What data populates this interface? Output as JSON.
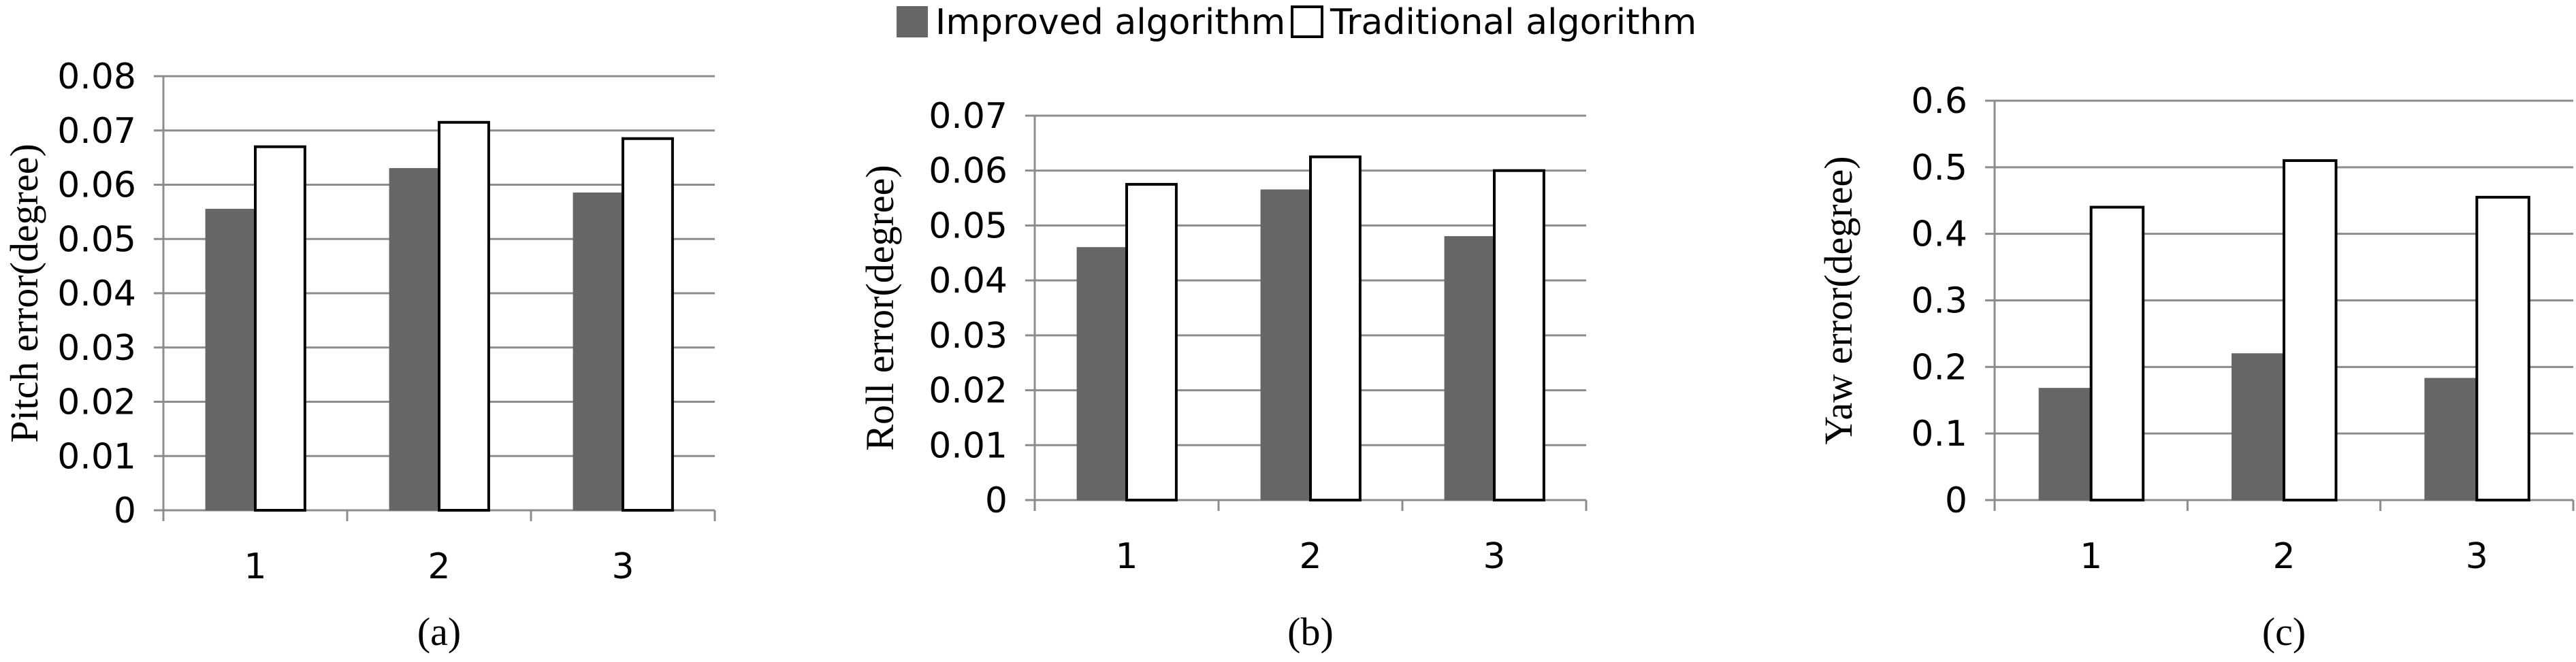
{
  "legend": {
    "series": [
      {
        "name": "Improved algorithm",
        "color": "#666666"
      },
      {
        "name": "Traditional algorithm",
        "color": "#ffffff"
      }
    ]
  },
  "chart_data": [
    {
      "type": "bar",
      "panel_label": "(a)",
      "ylabel": "Pitch error(degree)",
      "categories": [
        "1",
        "2",
        "3"
      ],
      "ylim": [
        0,
        0.08
      ],
      "yticks": [
        "0",
        "0.01",
        "0.02",
        "0.03",
        "0.04",
        "0.05",
        "0.06",
        "0.07",
        "0.08"
      ],
      "grid": true,
      "series": [
        {
          "name": "Improved algorithm",
          "values": [
            0.0555,
            0.063,
            0.0585
          ]
        },
        {
          "name": "Traditional algorithm",
          "values": [
            0.067,
            0.0715,
            0.0685
          ]
        }
      ]
    },
    {
      "type": "bar",
      "panel_label": "(b)",
      "ylabel": "Roll error(degree)",
      "categories": [
        "1",
        "2",
        "3"
      ],
      "ylim": [
        0,
        0.07
      ],
      "yticks": [
        "0",
        "0.01",
        "0.02",
        "0.03",
        "0.04",
        "0.05",
        "0.06",
        "0.07"
      ],
      "grid": true,
      "series": [
        {
          "name": "Improved algorithm",
          "values": [
            0.046,
            0.0565,
            0.048
          ]
        },
        {
          "name": "Traditional algorithm",
          "values": [
            0.0575,
            0.0625,
            0.06
          ]
        }
      ]
    },
    {
      "type": "bar",
      "panel_label": "(c)",
      "ylabel": "Yaw error(degree)",
      "categories": [
        "1",
        "2",
        "3"
      ],
      "ylim": [
        0,
        0.6
      ],
      "yticks": [
        "0",
        "0.1",
        "0.2",
        "0.3",
        "0.4",
        "0.5",
        "0.6"
      ],
      "grid": true,
      "series": [
        {
          "name": "Improved algorithm",
          "values": [
            0.168,
            0.22,
            0.183
          ]
        },
        {
          "name": "Traditional algorithm",
          "values": [
            0.44,
            0.51,
            0.455
          ]
        }
      ]
    }
  ]
}
